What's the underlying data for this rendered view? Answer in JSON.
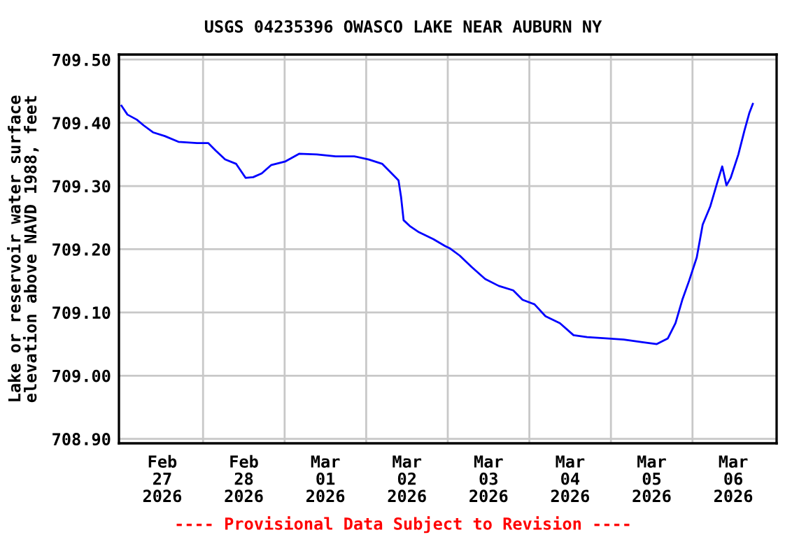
{
  "chart_data": {
    "type": "line",
    "title": "USGS 04235396 OWASCO LAKE NEAR AUBURN NY",
    "ylabel": "Lake or reservoir water surface\nelevation above NAVD 1988, feet",
    "annotations": [
      "---- Provisional Data Subject to Revision ----"
    ],
    "x": [
      "2026-02-27T00:00",
      "2026-02-27T01:45",
      "2026-02-27T04:30",
      "2026-02-27T06:30",
      "2026-02-27T09:15",
      "2026-02-27T12:45",
      "2026-02-27T16:45",
      "2026-02-27T22:15",
      "2026-02-28T01:30",
      "2026-02-28T03:45",
      "2026-02-28T06:30",
      "2026-02-28T09:45",
      "2026-02-28T12:30",
      "2026-02-28T14:45",
      "2026-02-28T17:15",
      "2026-02-28T20:00",
      "2026-03-01T00:15",
      "2026-03-01T04:15",
      "2026-03-01T09:30",
      "2026-03-01T15:00",
      "2026-03-01T20:30",
      "2026-03-02T00:45",
      "2026-03-02T04:45",
      "2026-03-02T07:30",
      "2026-03-02T09:30",
      "2026-03-02T10:15",
      "2026-03-02T11:00",
      "2026-03-02T13:00",
      "2026-03-02T15:30",
      "2026-03-02T19:45",
      "2026-03-02T23:15",
      "2026-03-03T00:45",
      "2026-03-03T03:30",
      "2026-03-03T07:00",
      "2026-03-03T11:00",
      "2026-03-03T15:00",
      "2026-03-03T19:15",
      "2026-03-03T22:00",
      "2026-03-04T01:30",
      "2026-03-04T04:45",
      "2026-03-04T09:00",
      "2026-03-04T13:00",
      "2026-03-04T17:00",
      "2026-03-04T22:30",
      "2026-03-05T03:45",
      "2026-03-05T09:15",
      "2026-03-05T13:30",
      "2026-03-05T16:45",
      "2026-03-05T19:00",
      "2026-03-05T21:00",
      "2026-03-05T23:00",
      "2026-03-06T01:15",
      "2026-03-06T03:00",
      "2026-03-06T05:15",
      "2026-03-06T07:15",
      "2026-03-06T08:45",
      "2026-03-06T10:00",
      "2026-03-06T11:15",
      "2026-03-06T13:30",
      "2026-03-06T15:15",
      "2026-03-06T16:45",
      "2026-03-06T17:45"
    ],
    "series": [
      {
        "color": "#0000ff",
        "values": [
          709.427,
          709.413,
          709.405,
          709.396,
          709.385,
          709.379,
          709.37,
          709.368,
          709.368,
          709.356,
          709.342,
          709.335,
          709.313,
          709.314,
          709.32,
          709.333,
          709.339,
          709.351,
          709.35,
          709.347,
          709.347,
          709.342,
          709.335,
          709.32,
          709.309,
          709.283,
          709.246,
          709.236,
          709.227,
          709.216,
          709.205,
          709.201,
          709.19,
          709.172,
          709.153,
          709.142,
          709.135,
          709.12,
          709.113,
          709.094,
          709.083,
          709.064,
          709.061,
          709.059,
          709.057,
          709.053,
          709.05,
          709.059,
          709.083,
          709.12,
          709.15,
          709.187,
          709.239,
          709.268,
          709.305,
          709.331,
          709.301,
          709.313,
          709.35,
          709.387,
          709.416,
          709.43
        ]
      }
    ],
    "xlim": [
      "2026-02-26T23:15",
      "2026-03-07T00:45"
    ],
    "xticks": [
      {
        "value": "2026-02-27T12:00",
        "label": "Feb\n27\n2026"
      },
      {
        "value": "2026-02-28T00:00",
        "label": null
      },
      {
        "value": "2026-02-28T12:00",
        "label": "Feb\n28\n2026"
      },
      {
        "value": "2026-03-01T00:00",
        "label": null
      },
      {
        "value": "2026-03-01T12:00",
        "label": "Mar\n01\n2026"
      },
      {
        "value": "2026-03-02T00:00",
        "label": null
      },
      {
        "value": "2026-03-02T12:00",
        "label": "Mar\n02\n2026"
      },
      {
        "value": "2026-03-03T00:00",
        "label": null
      },
      {
        "value": "2026-03-03T12:00",
        "label": "Mar\n03\n2026"
      },
      {
        "value": "2026-03-04T00:00",
        "label": null
      },
      {
        "value": "2026-03-04T12:00",
        "label": "Mar\n04\n2026"
      },
      {
        "value": "2026-03-05T00:00",
        "label": null
      },
      {
        "value": "2026-03-05T12:00",
        "label": "Mar\n05\n2026"
      },
      {
        "value": "2026-03-06T00:00",
        "label": null
      },
      {
        "value": "2026-03-06T12:00",
        "label": "Mar\n06\n2026"
      }
    ],
    "ylim": [
      708.893,
      709.508
    ],
    "yticks": [
      {
        "value": 708.9,
        "label": "708.90"
      },
      {
        "value": 709.0,
        "label": "709.00"
      },
      {
        "value": 709.1,
        "label": "709.10"
      },
      {
        "value": 709.2,
        "label": "709.20"
      },
      {
        "value": 709.3,
        "label": "709.30"
      },
      {
        "value": 709.4,
        "label": "709.40"
      },
      {
        "value": 709.5,
        "label": "709.50"
      }
    ],
    "grid": true,
    "line_style": "solid"
  }
}
